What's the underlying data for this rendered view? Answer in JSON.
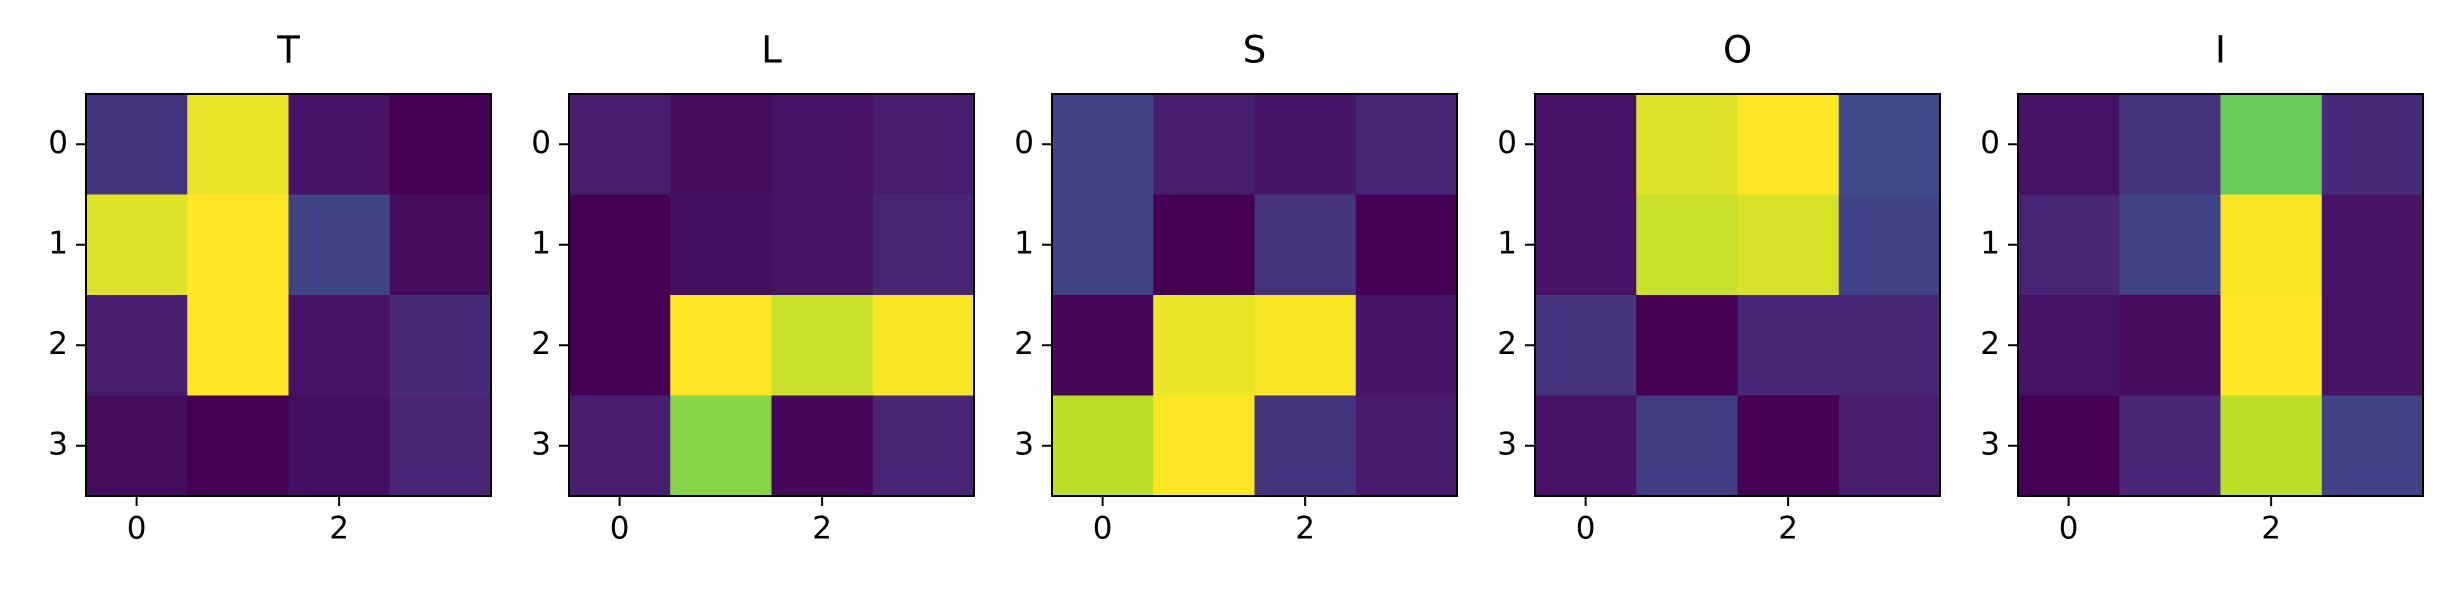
{
  "chart_data": [
    {
      "type": "heatmap",
      "title": "T",
      "colormap": "viridis",
      "xlim": [
        -0.5,
        3.5
      ],
      "ylim": [
        3.5,
        -0.5
      ],
      "xticks": [
        0,
        2
      ],
      "yticks": [
        0,
        1,
        2,
        3
      ],
      "z": [
        [
          0.15,
          0.95,
          0.05,
          0.0
        ],
        [
          0.93,
          0.98,
          0.2,
          0.03
        ],
        [
          0.08,
          0.98,
          0.05,
          0.12
        ],
        [
          0.03,
          0.0,
          0.04,
          0.1
        ]
      ]
    },
    {
      "type": "heatmap",
      "title": "L",
      "colormap": "viridis",
      "xlim": [
        -0.5,
        3.5
      ],
      "ylim": [
        3.5,
        -0.5
      ],
      "xticks": [
        0,
        2
      ],
      "yticks": [
        0,
        1,
        2,
        3
      ],
      "z": [
        [
          0.08,
          0.03,
          0.05,
          0.08
        ],
        [
          0.0,
          0.04,
          0.05,
          0.1
        ],
        [
          0.0,
          0.98,
          0.9,
          0.97
        ],
        [
          0.08,
          0.8,
          0.02,
          0.1
        ]
      ]
    },
    {
      "type": "heatmap",
      "title": "S",
      "colormap": "viridis",
      "xlim": [
        -0.5,
        3.5
      ],
      "ylim": [
        3.5,
        -0.5
      ],
      "xticks": [
        0,
        2
      ],
      "yticks": [
        0,
        1,
        2,
        3
      ],
      "z": [
        [
          0.2,
          0.08,
          0.06,
          0.1
        ],
        [
          0.2,
          0.0,
          0.15,
          0.0
        ],
        [
          0.02,
          0.95,
          0.97,
          0.05
        ],
        [
          0.88,
          0.98,
          0.15,
          0.07
        ]
      ]
    },
    {
      "type": "heatmap",
      "title": "O",
      "colormap": "viridis",
      "xlim": [
        -0.5,
        3.5
      ],
      "ylim": [
        3.5,
        -0.5
      ],
      "xticks": [
        0,
        2
      ],
      "yticks": [
        0,
        1,
        2,
        3
      ],
      "z": [
        [
          0.05,
          0.93,
          0.98,
          0.22
        ],
        [
          0.05,
          0.9,
          0.92,
          0.2
        ],
        [
          0.15,
          0.0,
          0.1,
          0.1
        ],
        [
          0.05,
          0.18,
          0.0,
          0.08
        ]
      ]
    },
    {
      "type": "heatmap",
      "title": "I",
      "colormap": "viridis",
      "xlim": [
        -0.5,
        3.5
      ],
      "ylim": [
        3.5,
        -0.5
      ],
      "xticks": [
        0,
        2
      ],
      "yticks": [
        0,
        1,
        2,
        3
      ],
      "z": [
        [
          0.05,
          0.15,
          0.75,
          0.12
        ],
        [
          0.1,
          0.2,
          0.97,
          0.05
        ],
        [
          0.05,
          0.03,
          0.98,
          0.05
        ],
        [
          0.0,
          0.1,
          0.88,
          0.2
        ]
      ]
    }
  ]
}
